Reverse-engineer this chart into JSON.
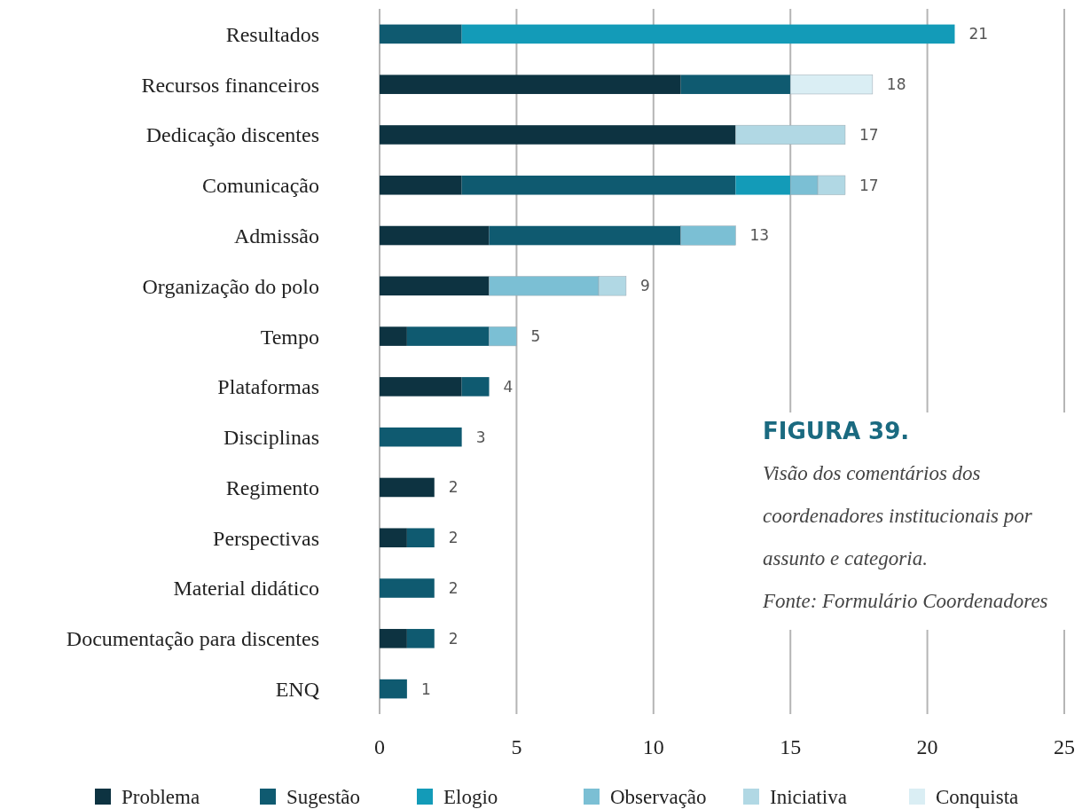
{
  "chart_data": {
    "type": "bar",
    "orientation": "horizontal",
    "stacked": true,
    "title": "FIGURA 39.",
    "subtitle": "Visão dos comentários dos coordenadores institucionais por assunto e categoria.",
    "annotations": [
      "Fonte: Formulário Coordenadores"
    ],
    "categories": [
      "Resultados",
      "Recursos financeiros",
      "Dedicação discentes",
      "Comunicação",
      "Admissão",
      "Organização do polo",
      "Tempo",
      "Plataformas",
      "Disciplinas",
      "Regimento",
      "Perspectivas",
      "Material didático",
      "Documentação para discentes",
      "ENQ"
    ],
    "series": [
      {
        "name": "Problema",
        "color": "#0d3341",
        "values": [
          0,
          11,
          13,
          3,
          4,
          4,
          1,
          3,
          0,
          2,
          1,
          0,
          1,
          0
        ]
      },
      {
        "name": "Sugestão",
        "color": "#0f5a70",
        "values": [
          3,
          4,
          0,
          10,
          7,
          0,
          3,
          1,
          3,
          0,
          1,
          2,
          1,
          1
        ]
      },
      {
        "name": "Elogio",
        "color": "#139bb8",
        "values": [
          18,
          0,
          0,
          2,
          0,
          0,
          0,
          0,
          0,
          0,
          0,
          0,
          0,
          0
        ]
      },
      {
        "name": "Observação",
        "color": "#7bbfd4",
        "values": [
          0,
          0,
          0,
          1,
          2,
          4,
          1,
          0,
          0,
          0,
          0,
          0,
          0,
          0
        ]
      },
      {
        "name": "Iniciativa",
        "color": "#b1d8e4",
        "values": [
          0,
          0,
          4,
          1,
          0,
          1,
          0,
          0,
          0,
          0,
          0,
          0,
          0,
          0
        ]
      },
      {
        "name": "Conquista",
        "color": "#daeef4",
        "values": [
          0,
          3,
          0,
          0,
          0,
          0,
          0,
          0,
          0,
          0,
          0,
          0,
          0,
          0
        ]
      }
    ],
    "totals": [
      "21",
      "18",
      "17",
      "17",
      "13",
      "9",
      "5",
      "4",
      "3",
      "2",
      "2",
      "2",
      "2",
      "1"
    ],
    "xlim": [
      0,
      25
    ],
    "xticks": [
      0,
      5,
      10,
      15,
      20,
      25
    ],
    "grid": "x",
    "legend": "bottom"
  }
}
